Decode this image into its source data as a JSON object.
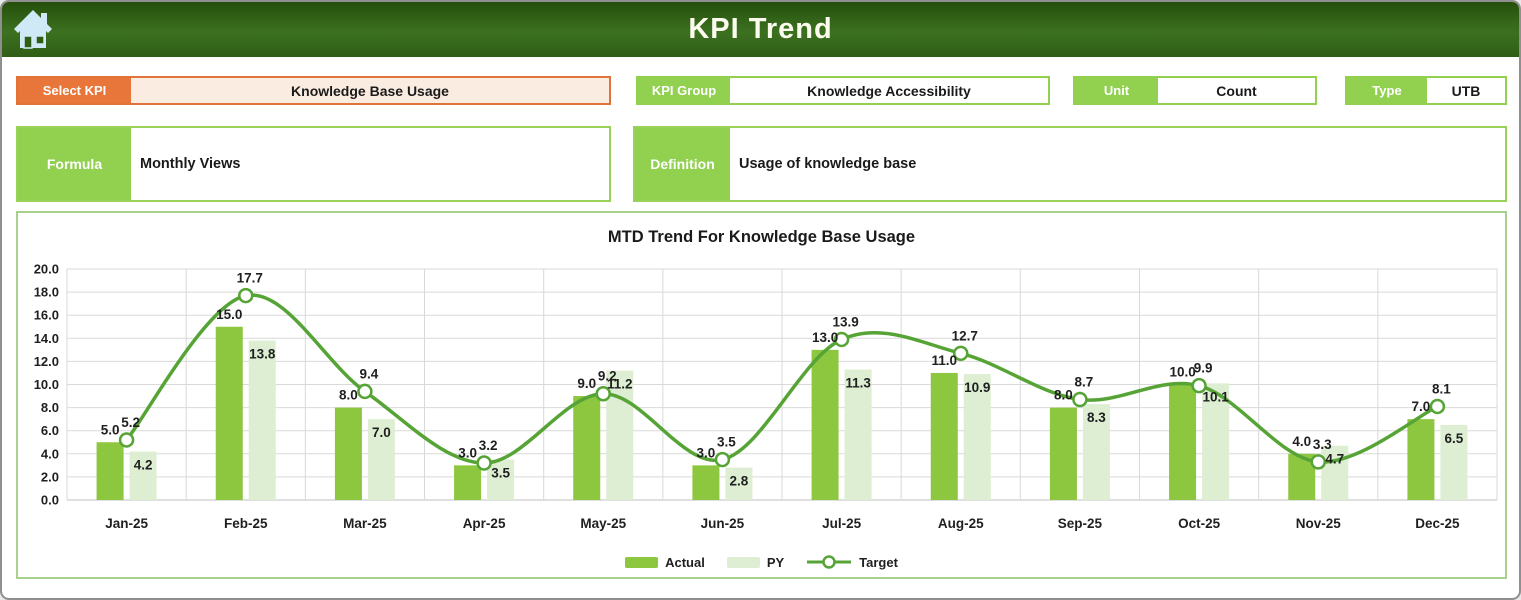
{
  "header": {
    "title": "KPI Trend",
    "home_icon": "home-icon"
  },
  "controls": {
    "select_kpi": {
      "label": "Select KPI",
      "value": "Knowledge Base Usage"
    },
    "kpi_group": {
      "label": "KPI Group",
      "value": "Knowledge Accessibility"
    },
    "unit": {
      "label": "Unit",
      "value": "Count"
    },
    "type": {
      "label": "Type",
      "value": "UTB"
    }
  },
  "details": {
    "formula": {
      "label": "Formula",
      "value": "Monthly Views"
    },
    "definition": {
      "label": "Definition",
      "value": "Usage of knowledge base"
    }
  },
  "chart_data": {
    "type": "bar+line combo",
    "title": "MTD Trend For Knowledge Base Usage",
    "categories": [
      "Jan-25",
      "Feb-25",
      "Mar-25",
      "Apr-25",
      "May-25",
      "Jun-25",
      "Jul-25",
      "Aug-25",
      "Sep-25",
      "Oct-25",
      "Nov-25",
      "Dec-25"
    ],
    "series": [
      {
        "name": "Actual",
        "type": "bar",
        "color": "#8dc63f",
        "values": [
          5.0,
          15.0,
          8.0,
          3.0,
          9.0,
          3.0,
          13.0,
          11.0,
          8.0,
          10.0,
          4.0,
          7.0
        ]
      },
      {
        "name": "PY",
        "type": "bar",
        "color": "#ddeed3",
        "values": [
          4.2,
          13.8,
          7.0,
          3.5,
          11.2,
          2.8,
          11.3,
          10.9,
          8.3,
          10.1,
          4.7,
          6.5
        ]
      },
      {
        "name": "Target",
        "type": "line",
        "color": "#56a436",
        "marker": "open-circle",
        "values": [
          5.2,
          17.7,
          9.4,
          3.2,
          9.2,
          3.5,
          13.9,
          12.7,
          8.7,
          9.9,
          3.3,
          8.1
        ]
      }
    ],
    "ylim": [
      0,
      20
    ],
    "ytick_step": 2,
    "ytick_format_decimals": 1,
    "grid": true,
    "gridline_color": "#d9d9d9",
    "legend_position": "bottom"
  },
  "colors": {
    "header_green_dark": "#2b5511",
    "header_green_light": "#3c7120",
    "accent_green": "#92d050",
    "accent_orange": "#e8763a",
    "select_value_bg": "#fbece1",
    "chart_border": "#a9d18e",
    "home_icon_blue": "#cfe9f7"
  }
}
